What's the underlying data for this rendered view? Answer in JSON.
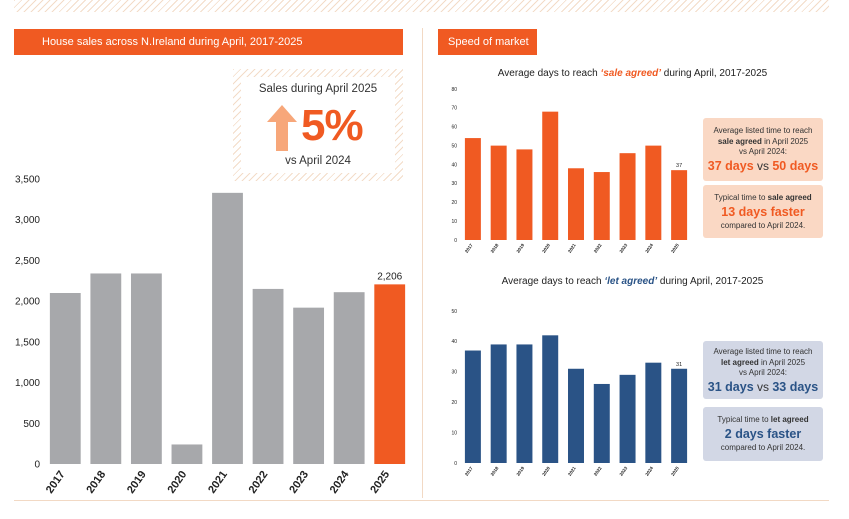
{
  "header_left": "House sales across N.Ireland during April, 2017-2025",
  "header_right": "Speed of market",
  "callout": {
    "title": "Sales during April 2025",
    "value": "5%",
    "direction": "up-arrow-icon",
    "subtitle": "vs April 2024"
  },
  "sale_title": {
    "pre": "Average days to reach ",
    "em": "‘sale agreed’",
    "post": " during April, 2017-2025"
  },
  "let_title": {
    "pre": "Average days to reach ",
    "em": "‘let agreed’",
    "post": " during April, 2017-2025"
  },
  "sale_info1": {
    "l1": "Average listed time to reach",
    "l2b": "sale agreed",
    "l2": " in April 2025",
    "l3": "vs April 2024:",
    "a": "37 days",
    "vs": " vs ",
    "b": "50 days"
  },
  "sale_info2": {
    "l1": "Typical time to ",
    "l1b": "sale agreed",
    "big": "13 days faster",
    "l3": "compared to April 2024."
  },
  "let_info1": {
    "l1": "Average listed time to reach",
    "l2b": "let agreed",
    "l2": " in April 2025",
    "l3": "vs April 2024:",
    "a": "31 days",
    "vs": " vs ",
    "b": "33 days"
  },
  "let_info2": {
    "l1": "Typical time to ",
    "l1b": "let agreed",
    "big": "2 days faster",
    "l3": "compared to April 2024."
  },
  "colors": {
    "accent": "#f05a22",
    "grey_bar": "#a7a8ab",
    "blue_bar": "#2a5386"
  },
  "chart_data": [
    {
      "type": "bar",
      "categories": [
        "2017",
        "2018",
        "2019",
        "2020",
        "2021",
        "2022",
        "2023",
        "2024",
        "2025"
      ],
      "values": [
        2100,
        2340,
        2340,
        240,
        3330,
        2150,
        1920,
        2110,
        2206
      ],
      "ylim": [
        0,
        3500
      ],
      "yticks": [
        "0",
        "500",
        "1,000",
        "1,500",
        "2,000",
        "2,500",
        "3,000",
        "3,500"
      ],
      "data_labels": {
        "8": "2,206"
      },
      "highlight_index": 8,
      "grid": false
    },
    {
      "type": "bar",
      "categories": [
        "2017",
        "2018",
        "2019",
        "2020",
        "2021",
        "2022",
        "2023",
        "2024",
        "2025"
      ],
      "values": [
        54,
        50,
        48,
        68,
        38,
        36,
        46,
        50,
        37
      ],
      "ylim": [
        0,
        80
      ],
      "yticks": [
        "0",
        "10",
        "20",
        "30",
        "40",
        "50",
        "60",
        "70",
        "80"
      ],
      "data_labels": {
        "8": "37"
      },
      "grid": false
    },
    {
      "type": "bar",
      "categories": [
        "2017",
        "2018",
        "2019",
        "2020",
        "2021",
        "2022",
        "2023",
        "2024",
        "2025"
      ],
      "values": [
        37,
        39,
        39,
        42,
        31,
        26,
        29,
        33,
        31
      ],
      "ylim": [
        0,
        50
      ],
      "yticks": [
        "0",
        "10",
        "20",
        "30",
        "40",
        "50"
      ],
      "data_labels": {
        "8": "31"
      },
      "grid": false
    }
  ]
}
